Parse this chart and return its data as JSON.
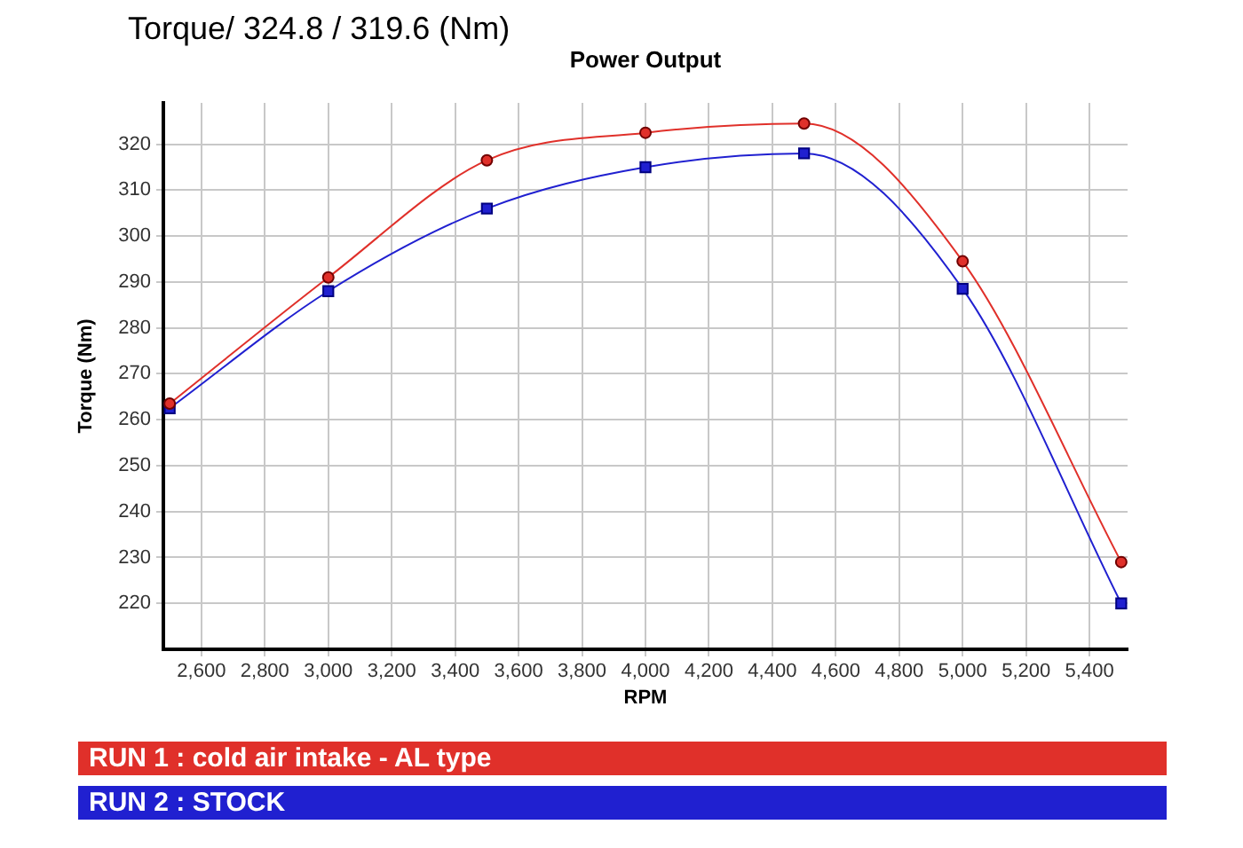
{
  "chart_data": {
    "type": "line",
    "title": "Torque/ 324.8 / 319.6 (Nm)",
    "subtitle": "Power Output",
    "xlabel": "RPM",
    "ylabel": "Torque (Nm)",
    "x": [
      2500,
      3000,
      3500,
      4000,
      4500,
      5000,
      5500
    ],
    "series": [
      {
        "name": "RUN 1 : cold air intake - AL type",
        "color": "#e0302a",
        "marker": "circle",
        "values": [
          263.5,
          291,
          316.5,
          322.5,
          324.5,
          294.5,
          229
        ]
      },
      {
        "name": "RUN 2 : STOCK",
        "color": "#2020d0",
        "marker": "square",
        "values": [
          262.5,
          288,
          306,
          315,
          318,
          288.5,
          220
        ]
      }
    ],
    "xlim": [
      2480,
      5520
    ],
    "xticks": [
      {
        "value": 2600,
        "label": "2,600"
      },
      {
        "value": 2800,
        "label": "2,800"
      },
      {
        "value": 3000,
        "label": "3,000"
      },
      {
        "value": 3200,
        "label": "3,200"
      },
      {
        "value": 3400,
        "label": "3,400"
      },
      {
        "value": 3600,
        "label": "3,600"
      },
      {
        "value": 3800,
        "label": "3,800"
      },
      {
        "value": 4000,
        "label": "4,000"
      },
      {
        "value": 4200,
        "label": "4,200"
      },
      {
        "value": 4400,
        "label": "4,400"
      },
      {
        "value": 4600,
        "label": "4,600"
      },
      {
        "value": 4800,
        "label": "4,800"
      },
      {
        "value": 5000,
        "label": "5,000"
      },
      {
        "value": 5200,
        "label": "5,200"
      },
      {
        "value": 5400,
        "label": "5,400"
      }
    ],
    "ylim": [
      210,
      329
    ],
    "yticks": [
      220,
      230,
      240,
      250,
      260,
      270,
      280,
      290,
      300,
      310,
      320
    ],
    "grid": true,
    "legend": "bottom",
    "line_style": "solid"
  }
}
